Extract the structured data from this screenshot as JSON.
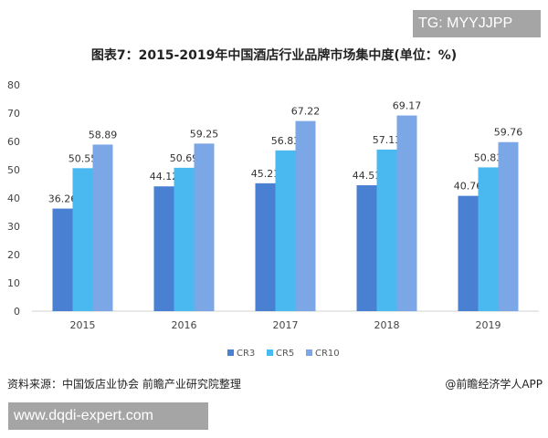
{
  "watermark_tg": "TG: MYYJJPP",
  "watermark_url": "www.dqdi-expert.com",
  "source": "资料来源：中国饭店业协会 前瞻产业研究院整理",
  "brand": "@前瞻经济学人APP",
  "chart_data": {
    "type": "bar",
    "title": "图表7：2015-2019年中国酒店行业品牌市场集中度(单位：%)",
    "xlabel": "",
    "ylabel": "",
    "categories": [
      "2015",
      "2016",
      "2017",
      "2018",
      "2019"
    ],
    "ylim": [
      0,
      80
    ],
    "yticks": [
      0,
      10,
      20,
      30,
      40,
      50,
      60,
      70,
      80
    ],
    "grid": false,
    "legend_position": "bottom",
    "series": [
      {
        "name": "CR3",
        "color": "#4a80d2",
        "values": [
          36.26,
          44.12,
          45.21,
          44.51,
          40.76
        ]
      },
      {
        "name": "CR5",
        "color": "#4ab9f0",
        "values": [
          50.55,
          50.69,
          56.83,
          57.13,
          50.83
        ]
      },
      {
        "name": "CR10",
        "color": "#7ba7e6",
        "values": [
          58.89,
          59.25,
          67.22,
          69.17,
          59.76
        ]
      }
    ]
  }
}
